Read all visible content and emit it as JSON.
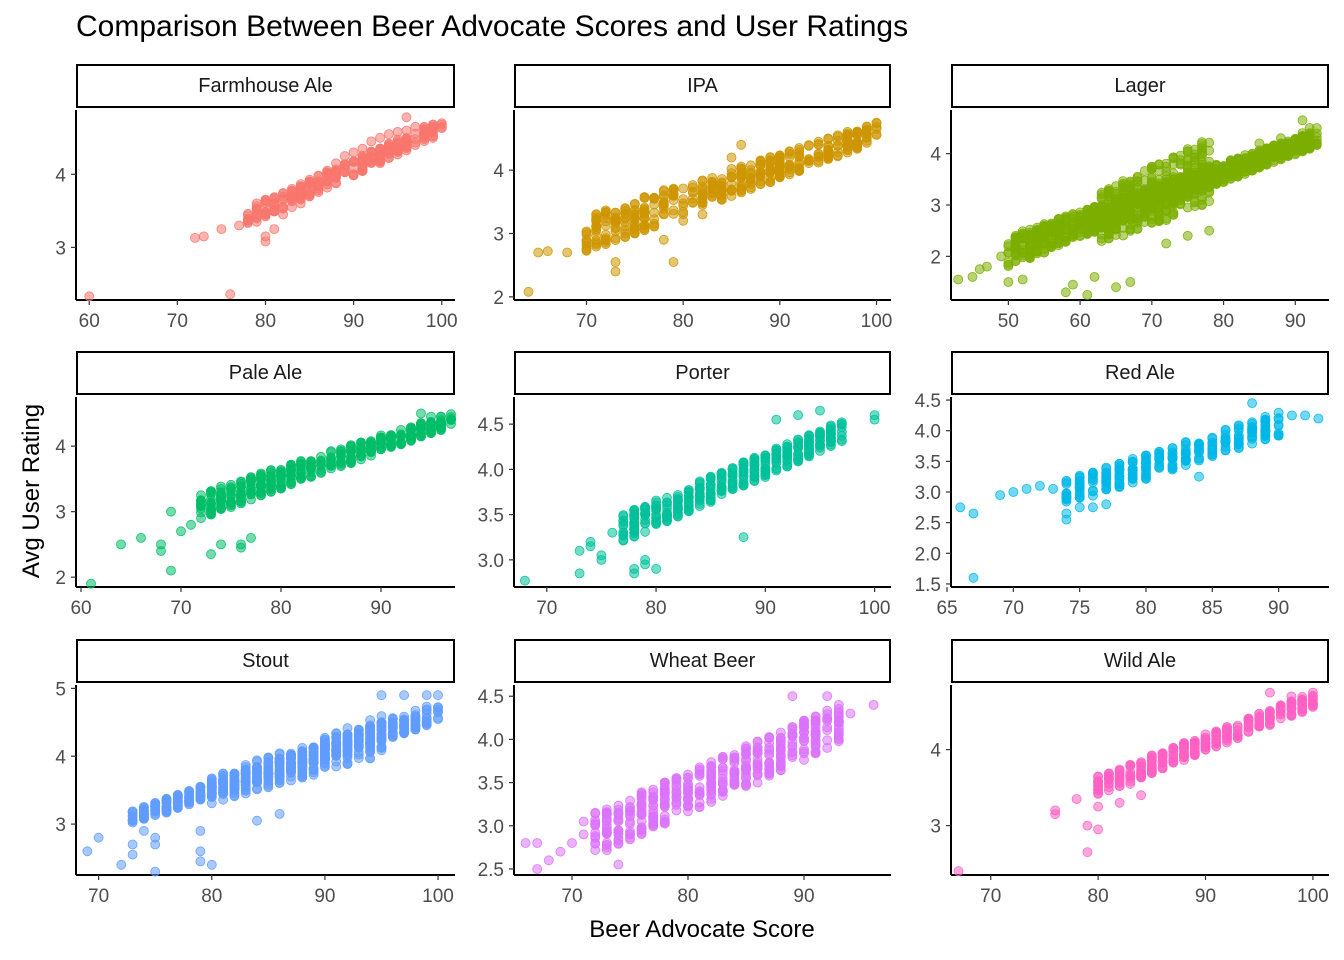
{
  "chart_data": {
    "type": "scatter",
    "title": "Comparison Between Beer Advocate Scores and User Ratings",
    "xlabel": "Beer Advocate Score",
    "ylabel": "Avg User Rating",
    "facets": [
      {
        "name": "Farmhouse Ale",
        "color": "#F8766D",
        "xlim": [
          58.5,
          101.5
        ],
        "ylim": [
          2.28,
          4.88
        ],
        "xticks": [
          60,
          70,
          80,
          90,
          100
        ],
        "yticks": [
          3,
          4
        ],
        "points": [
          [
            60,
            2.33
          ],
          [
            72,
            3.13
          ],
          [
            73,
            3.15
          ],
          [
            75,
            3.25
          ],
          [
            76,
            2.36
          ],
          [
            77,
            3.3
          ],
          [
            78,
            3.35
          ],
          [
            79,
            3.35
          ],
          [
            80,
            3.15
          ],
          [
            80,
            3.45
          ],
          [
            81,
            3.25
          ],
          [
            82,
            3.45
          ],
          [
            83,
            3.55
          ],
          [
            84,
            3.6
          ],
          [
            85,
            3.75
          ],
          [
            86,
            3.9
          ],
          [
            87,
            4.05
          ],
          [
            88,
            4.15
          ],
          [
            89,
            4.25
          ],
          [
            90,
            4.3
          ],
          [
            91,
            4.35
          ],
          [
            92,
            4.45
          ],
          [
            93,
            4.5
          ],
          [
            94,
            4.55
          ],
          [
            95,
            4.58
          ],
          [
            96,
            4.6
          ],
          [
            97,
            4.65
          ],
          [
            98,
            4.65
          ],
          [
            99,
            4.68
          ],
          [
            100,
            4.7
          ],
          [
            96,
            4.78
          ],
          [
            80,
            3.08
          ]
        ],
        "cloud": [
          {
            "x": [
              78,
              100
            ],
            "y0": [
              3.3,
              4.55
            ],
            "y1": [
              3.55,
              4.75
            ],
            "n": 260
          }
        ]
      },
      {
        "name": "IPA",
        "color": "#CD9600",
        "xlim": [
          62.5,
          101.5
        ],
        "ylim": [
          1.95,
          4.95
        ],
        "xticks": [
          70,
          80,
          90,
          100
        ],
        "yticks": [
          2,
          3,
          4
        ],
        "points": [
          [
            64,
            2.08
          ],
          [
            65,
            2.7
          ],
          [
            66,
            2.72
          ],
          [
            68,
            2.7
          ],
          [
            70,
            2.85
          ],
          [
            71,
            2.85
          ],
          [
            72,
            2.9
          ],
          [
            73,
            2.4
          ],
          [
            73,
            2.55
          ],
          [
            74,
            3.0
          ],
          [
            75,
            3.0
          ],
          [
            76,
            3.05
          ],
          [
            78,
            2.9
          ],
          [
            79,
            2.55
          ],
          [
            80,
            3.2
          ],
          [
            82,
            3.3
          ],
          [
            84,
            3.6
          ],
          [
            85,
            4.2
          ],
          [
            86,
            4.4
          ],
          [
            88,
            3.9
          ],
          [
            90,
            4.2
          ],
          [
            92,
            4.35
          ],
          [
            94,
            4.45
          ],
          [
            96,
            4.55
          ],
          [
            98,
            4.6
          ],
          [
            100,
            4.65
          ],
          [
            100,
            4.75
          ]
        ],
        "cloud": [
          {
            "x": [
              70,
              100
            ],
            "y0": [
              2.7,
              4.45
            ],
            "y1": [
              3.3,
              4.75
            ],
            "n": 420
          }
        ]
      },
      {
        "name": "Lager",
        "color": "#7CAE00",
        "xlim": [
          42.0,
          94.7
        ],
        "ylim": [
          1.15,
          4.85
        ],
        "xticks": [
          50,
          60,
          70,
          80,
          90
        ],
        "yticks": [
          2,
          3,
          4
        ],
        "points": [
          [
            43,
            1.55
          ],
          [
            45,
            1.6
          ],
          [
            46,
            1.75
          ],
          [
            47,
            1.8
          ],
          [
            49,
            2.0
          ],
          [
            50,
            1.5
          ],
          [
            52,
            1.55
          ],
          [
            53,
            2.2
          ],
          [
            55,
            2.25
          ],
          [
            58,
            1.3
          ],
          [
            59,
            1.45
          ],
          [
            61,
            1.25
          ],
          [
            62,
            1.6
          ],
          [
            65,
            1.4
          ],
          [
            67,
            1.5
          ],
          [
            72,
            2.25
          ],
          [
            75,
            2.4
          ],
          [
            78,
            2.5
          ],
          [
            85,
            4.2
          ],
          [
            88,
            4.3
          ],
          [
            91,
            4.4
          ],
          [
            92,
            4.5
          ],
          [
            93,
            4.5
          ],
          [
            91,
            4.65
          ]
        ],
        "cloud": [
          {
            "x": [
              50,
              93
            ],
            "y0": [
              1.8,
              4.15
            ],
            "y1": [
              2.4,
              4.45
            ],
            "n": 900
          },
          {
            "x": [
              62,
              78
            ],
            "y0": [
              2.2,
              3.0
            ],
            "y1": [
              3.2,
              4.3
            ],
            "n": 300
          }
        ]
      },
      {
        "name": "Pale Ale",
        "color": "#00BE67",
        "xlim": [
          59.5,
          97.4
        ],
        "ylim": [
          1.85,
          4.75
        ],
        "xticks": [
          60,
          70,
          80,
          90
        ],
        "yticks": [
          2,
          3,
          4
        ],
        "points": [
          [
            61,
            1.9
          ],
          [
            64,
            2.5
          ],
          [
            66,
            2.6
          ],
          [
            68,
            2.4
          ],
          [
            68,
            2.5
          ],
          [
            69,
            2.1
          ],
          [
            69,
            3.0
          ],
          [
            70,
            2.7
          ],
          [
            71,
            2.8
          ],
          [
            72,
            2.9
          ],
          [
            73,
            2.35
          ],
          [
            74,
            2.5
          ],
          [
            76,
            2.45
          ],
          [
            76,
            2.5
          ],
          [
            77,
            2.6
          ],
          [
            94,
            4.5
          ],
          [
            95,
            4.45
          ],
          [
            96,
            4.45
          ],
          [
            97,
            4.4
          ]
        ],
        "cloud": [
          {
            "x": [
              72,
              97
            ],
            "y0": [
              2.9,
              4.3
            ],
            "y1": [
              3.3,
              4.5
            ],
            "n": 450
          }
        ]
      },
      {
        "name": "Porter",
        "color": "#00C19A",
        "xlim": [
          67.0,
          101.5
        ],
        "ylim": [
          2.7,
          4.8
        ],
        "xticks": [
          70,
          80,
          90,
          100
        ],
        "yticks": [
          3.0,
          3.5,
          4.0,
          4.5
        ],
        "ytick_labels": [
          "3.0",
          "3.5",
          "4.0",
          "4.5"
        ],
        "points": [
          [
            68,
            2.77
          ],
          [
            73,
            2.85
          ],
          [
            73,
            3.1
          ],
          [
            74,
            3.15
          ],
          [
            74,
            3.2
          ],
          [
            75,
            3.0
          ],
          [
            75,
            3.05
          ],
          [
            76,
            3.3
          ],
          [
            77,
            3.3
          ],
          [
            78,
            2.85
          ],
          [
            78,
            2.9
          ],
          [
            79,
            2.95
          ],
          [
            79,
            3.0
          ],
          [
            80,
            2.9
          ],
          [
            88,
            3.25
          ],
          [
            91,
            4.55
          ],
          [
            93,
            4.6
          ],
          [
            95,
            4.65
          ],
          [
            100,
            4.55
          ],
          [
            100,
            4.6
          ]
        ],
        "cloud": [
          {
            "x": [
              77,
              97
            ],
            "y0": [
              3.2,
              4.3
            ],
            "y1": [
              3.5,
              4.55
            ],
            "n": 380
          }
        ]
      },
      {
        "name": "Red Ale",
        "color": "#00B8E7",
        "xlim": [
          65.3,
          93.8
        ],
        "ylim": [
          1.45,
          4.55
        ],
        "xticks": [
          65,
          70,
          75,
          80,
          85,
          90
        ],
        "yticks": [
          1.5,
          2.0,
          2.5,
          3.0,
          3.5,
          4.0,
          4.5
        ],
        "ytick_labels": [
          "1.5",
          "2.0",
          "2.5",
          "3.0",
          "3.5",
          "4.0",
          "4.5"
        ],
        "points": [
          [
            66,
            2.75
          ],
          [
            67,
            2.65
          ],
          [
            67,
            1.6
          ],
          [
            69,
            2.95
          ],
          [
            70,
            3.0
          ],
          [
            71,
            3.05
          ],
          [
            72,
            3.1
          ],
          [
            73,
            3.05
          ],
          [
            74,
            2.55
          ],
          [
            74,
            2.65
          ],
          [
            75,
            2.75
          ],
          [
            76,
            2.75
          ],
          [
            77,
            2.8
          ],
          [
            84,
            3.25
          ],
          [
            88,
            4.45
          ],
          [
            91,
            4.25
          ],
          [
            92,
            4.25
          ],
          [
            93,
            4.2
          ]
        ],
        "cloud": [
          {
            "x": [
              74,
              90
            ],
            "y0": [
              2.8,
              3.9
            ],
            "y1": [
              3.2,
              4.3
            ],
            "n": 260
          }
        ]
      },
      {
        "name": "Stout",
        "color": "#619CFF",
        "xlim": [
          68.0,
          101.5
        ],
        "ylim": [
          2.25,
          5.05
        ],
        "xticks": [
          70,
          80,
          90,
          100
        ],
        "yticks": [
          3,
          4,
          5
        ],
        "points": [
          [
            69,
            2.6
          ],
          [
            70,
            2.8
          ],
          [
            72,
            2.4
          ],
          [
            73,
            2.55
          ],
          [
            73,
            2.7
          ],
          [
            74,
            2.9
          ],
          [
            75,
            2.3
          ],
          [
            75,
            2.7
          ],
          [
            75,
            2.8
          ],
          [
            79,
            2.45
          ],
          [
            79,
            2.6
          ],
          [
            79,
            2.9
          ],
          [
            80,
            2.4
          ],
          [
            84,
            3.05
          ],
          [
            86,
            3.15
          ],
          [
            95,
            4.9
          ],
          [
            97,
            4.9
          ],
          [
            99,
            4.9
          ],
          [
            100,
            4.9
          ]
        ],
        "cloud": [
          {
            "x": [
              73,
              100
            ],
            "y0": [
              3.0,
              4.5
            ],
            "y1": [
              3.2,
              4.8
            ],
            "n": 520
          },
          {
            "x": [
              80,
              95
            ],
            "y0": [
              3.3,
              4.0
            ],
            "y1": [
              3.7,
              4.6
            ],
            "n": 260
          }
        ]
      },
      {
        "name": "Wheat Beer",
        "color": "#DB72FB",
        "xlim": [
          65.0,
          97.5
        ],
        "ylim": [
          2.43,
          4.63
        ],
        "xticks": [
          70,
          80,
          90
        ],
        "yticks": [
          2.5,
          3.0,
          3.5,
          4.0,
          4.5
        ],
        "ytick_labels": [
          "2.5",
          "3.0",
          "3.5",
          "4.0",
          "4.5"
        ],
        "points": [
          [
            66,
            2.8
          ],
          [
            67,
            2.5
          ],
          [
            67,
            2.8
          ],
          [
            68,
            2.6
          ],
          [
            69,
            2.7
          ],
          [
            70,
            2.8
          ],
          [
            71,
            2.9
          ],
          [
            71,
            3.05
          ],
          [
            72,
            3.15
          ],
          [
            74,
            2.55
          ],
          [
            86,
            3.6
          ],
          [
            86,
            3.5
          ],
          [
            89,
            4.5
          ],
          [
            92,
            4.5
          ],
          [
            94,
            4.3
          ],
          [
            96,
            4.4
          ]
        ],
        "cloud": [
          {
            "x": [
              72,
              93
            ],
            "y0": [
              2.65,
              3.95
            ],
            "y1": [
              3.15,
              4.4
            ],
            "n": 420
          }
        ]
      },
      {
        "name": "Wild Ale",
        "color": "#FF61C3",
        "xlim": [
          66.3,
          101.5
        ],
        "ylim": [
          2.35,
          4.85
        ],
        "xticks": [
          70,
          80,
          90,
          100
        ],
        "yticks": [
          3,
          4
        ],
        "points": [
          [
            67,
            2.4
          ],
          [
            76,
            3.2
          ],
          [
            76,
            3.15
          ],
          [
            78,
            3.35
          ],
          [
            79,
            3.0
          ],
          [
            79,
            2.65
          ],
          [
            80,
            2.95
          ],
          [
            80,
            3.25
          ],
          [
            81,
            3.55
          ],
          [
            82,
            3.3
          ],
          [
            83,
            3.55
          ],
          [
            84,
            3.4
          ],
          [
            96,
            4.75
          ],
          [
            98,
            4.7
          ],
          [
            100,
            4.75
          ]
        ],
        "cloud": [
          {
            "x": [
              80,
              100
            ],
            "y0": [
              3.4,
              4.55
            ],
            "y1": [
              3.65,
              4.75
            ],
            "n": 300
          }
        ]
      }
    ]
  }
}
